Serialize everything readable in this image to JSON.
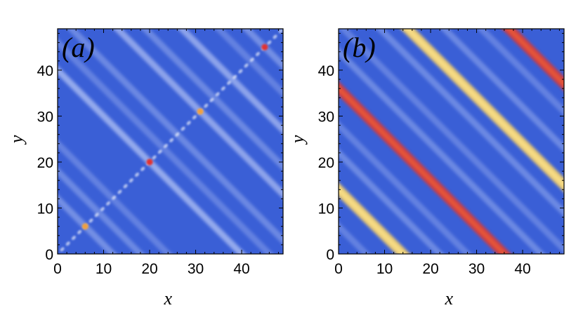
{
  "chart_data": [
    {
      "type": "heatmap",
      "panel_label": "(a)",
      "xlabel": "x",
      "ylabel": "y",
      "xlim": [
        0,
        49
      ],
      "ylim": [
        0,
        49
      ],
      "xticks": [
        0,
        10,
        20,
        30,
        40
      ],
      "yticks": [
        0,
        10,
        20,
        30,
        40
      ],
      "background_color": "#3a5fd6",
      "stripes": [
        {
          "direction": "anti-diagonal",
          "x_plus_y": 12,
          "strength": 0.35
        },
        {
          "direction": "anti-diagonal",
          "x_plus_y": 18,
          "strength": 0.3
        },
        {
          "direction": "anti-diagonal",
          "x_plus_y": 24,
          "strength": 0.25
        },
        {
          "direction": "anti-diagonal",
          "x_plus_y": 40,
          "strength": 0.55
        },
        {
          "direction": "anti-diagonal",
          "x_plus_y": 46,
          "strength": 0.25
        },
        {
          "direction": "anti-diagonal",
          "x_plus_y": 52,
          "strength": 0.3
        },
        {
          "direction": "anti-diagonal",
          "x_plus_y": 62,
          "strength": 0.5
        },
        {
          "direction": "anti-diagonal",
          "x_plus_y": 68,
          "strength": 0.3
        },
        {
          "direction": "anti-diagonal",
          "x_plus_y": 76,
          "strength": 0.5
        },
        {
          "direction": "anti-diagonal",
          "x_plus_y": 84,
          "strength": 0.25
        },
        {
          "direction": "anti-diagonal",
          "x_plus_y": 90,
          "strength": 0.35
        }
      ],
      "diagonal_dots": {
        "from": 1,
        "to": 49,
        "step": 1.25,
        "strength": 0.6
      },
      "hot_spots": [
        {
          "x": 6,
          "y": 6,
          "color": "#f0a040"
        },
        {
          "x": 20,
          "y": 20,
          "color": "#e03030"
        },
        {
          "x": 31,
          "y": 31,
          "color": "#f0a040"
        },
        {
          "x": 45,
          "y": 45,
          "color": "#e03030"
        }
      ]
    },
    {
      "type": "heatmap",
      "panel_label": "(b)",
      "xlabel": "x",
      "ylabel": "y",
      "xlim": [
        0,
        49
      ],
      "ylim": [
        0,
        49
      ],
      "xticks": [
        0,
        10,
        20,
        30,
        40
      ],
      "yticks": [
        0,
        10,
        20,
        30,
        40
      ],
      "background_color": "#3a5fd6",
      "stripes": [
        {
          "direction": "anti-diagonal",
          "x_plus_y": 6,
          "strength": 0.25
        },
        {
          "direction": "anti-diagonal",
          "x_plus_y": 14,
          "strength": 1.0,
          "color": "#f2cf6a"
        },
        {
          "direction": "anti-diagonal",
          "x_plus_y": 22,
          "strength": 0.3
        },
        {
          "direction": "anti-diagonal",
          "x_plus_y": 28,
          "strength": 0.25
        },
        {
          "direction": "anti-diagonal",
          "x_plus_y": 36,
          "strength": 1.0,
          "color": "#d63a3a"
        },
        {
          "direction": "anti-diagonal",
          "x_plus_y": 44,
          "strength": 0.3
        },
        {
          "direction": "anti-diagonal",
          "x_plus_y": 50,
          "strength": 0.25
        },
        {
          "direction": "anti-diagonal",
          "x_plus_y": 58,
          "strength": 0.3
        },
        {
          "direction": "anti-diagonal",
          "x_plus_y": 64,
          "strength": 1.0,
          "color": "#f2cf6a"
        },
        {
          "direction": "anti-diagonal",
          "x_plus_y": 72,
          "strength": 0.3
        },
        {
          "direction": "anti-diagonal",
          "x_plus_y": 80,
          "strength": 0.25
        },
        {
          "direction": "anti-diagonal",
          "x_plus_y": 86,
          "strength": 1.0,
          "color": "#d63a3a"
        }
      ]
    }
  ]
}
